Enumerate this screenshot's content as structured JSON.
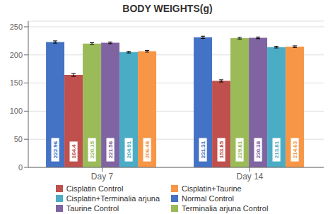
{
  "chart_data": {
    "type": "bar",
    "title": "BODY WEIGHTS(g)",
    "categories": [
      "Day 7",
      "Day 14"
    ],
    "series": [
      {
        "name": "Normal Control",
        "color": "#4472c4",
        "values": [
          222.96,
          231.31
        ],
        "errors": [
          2.0,
          2.0
        ]
      },
      {
        "name": "Cisplatin Control",
        "color": "#c0504d",
        "values": [
          164.4,
          153.85
        ],
        "errors": [
          2.5,
          2.0
        ]
      },
      {
        "name": "Terminalia arjuna Control",
        "color": "#9bbb59",
        "values": [
          220.15,
          229.81
        ],
        "errors": [
          1.5,
          1.5
        ]
      },
      {
        "name": "Taurine Control",
        "color": "#8064a2",
        "values": [
          221.56,
          230.38
        ],
        "errors": [
          1.5,
          1.5
        ]
      },
      {
        "name": "Cisplatin+Terminalia arjuna",
        "color": "#4bacc6",
        "values": [
          204.91,
          213.81
        ],
        "errors": [
          1.5,
          1.5
        ]
      },
      {
        "name": "Cisplatin+Taurine",
        "color": "#f79646",
        "values": [
          206.48,
          214.63
        ],
        "errors": [
          1.5,
          1.5
        ]
      }
    ],
    "ylim": [
      0,
      260
    ],
    "yticks": [
      0,
      50,
      100,
      150,
      200,
      250
    ],
    "grid": true,
    "data_labels": true,
    "legend": "bottom"
  }
}
